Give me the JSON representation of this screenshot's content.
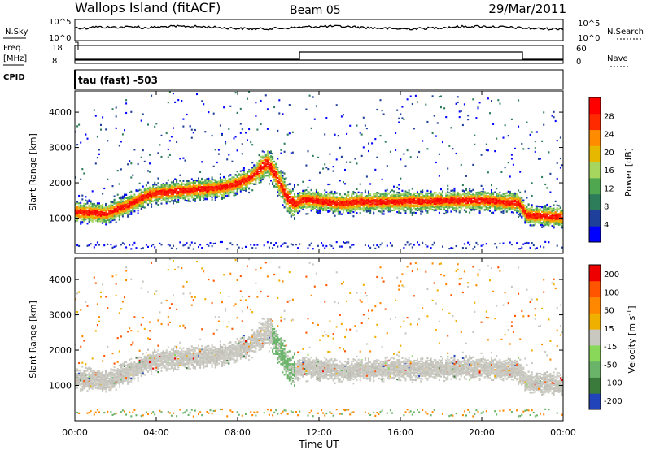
{
  "header": {
    "station": "Wallops Island (fitACF)",
    "beam": "Beam 05",
    "date": "29/Mar/2011"
  },
  "side_labels": {
    "nsky": "N.Sky",
    "nsearch": "N.Search",
    "freq": "Freq.",
    "freq_unit": "[MHz]",
    "nave": "Nave",
    "cpid": "CPID",
    "cpid_value": "tau (fast) -503"
  },
  "x_axis": {
    "label": "Time UT",
    "ticks": [
      "00:00",
      "04:00",
      "08:00",
      "12:00",
      "16:00",
      "20:00",
      "00:00"
    ],
    "range_hours": [
      0,
      24
    ]
  },
  "noise_panel": {
    "left_ticks": [
      "10^5",
      "10^0"
    ],
    "right_ticks": [
      "10^5",
      "10^0"
    ]
  },
  "freq_panel": {
    "left_ticks": [
      "18",
      "8"
    ],
    "right_ticks": [
      "60",
      "0"
    ]
  },
  "colors": {
    "power": [
      "#0000ff",
      "#1e3f9a",
      "#2d7d5a",
      "#4fa84f",
      "#a7d65f",
      "#e6b800",
      "#ff8c00",
      "#ff2a00",
      "#ff0000"
    ],
    "velocity": [
      "#2244bb",
      "#3a7a3a",
      "#6ab46a",
      "#8ad85a",
      "#c8c8c0",
      "#f0b000",
      "#ff8800",
      "#ff5500",
      "#ee0000"
    ]
  },
  "chart_data": [
    {
      "type": "heatmap",
      "xlabel": "Time UT",
      "ylabel": "Slant Range [km]",
      "ylim": [
        0,
        4600
      ],
      "y_ticks": [
        1000,
        2000,
        3000,
        4000
      ],
      "colorbar": {
        "label": "Power [dB]",
        "ticks": [
          4,
          8,
          12,
          16,
          20,
          24,
          28
        ],
        "range": [
          0,
          32
        ]
      },
      "band_center_km": [
        {
          "t": 0,
          "km": 1200
        },
        {
          "t": 1.5,
          "km": 1150
        },
        {
          "t": 2.6,
          "km": 1400
        },
        {
          "t": 3.6,
          "km": 1680
        },
        {
          "t": 5,
          "km": 1800
        },
        {
          "t": 6.5,
          "km": 1850
        },
        {
          "t": 7.5,
          "km": 1920
        },
        {
          "t": 8.6,
          "km": 2150
        },
        {
          "t": 9.4,
          "km": 2600
        },
        {
          "t": 9.8,
          "km": 2300
        },
        {
          "t": 10.4,
          "km": 1600
        },
        {
          "t": 10.8,
          "km": 1420
        },
        {
          "t": 11.2,
          "km": 1550
        },
        {
          "t": 12,
          "km": 1500
        },
        {
          "t": 13.2,
          "km": 1440
        },
        {
          "t": 14,
          "km": 1480
        },
        {
          "t": 17,
          "km": 1500
        },
        {
          "t": 20,
          "km": 1520
        },
        {
          "t": 21.8,
          "km": 1450
        },
        {
          "t": 22.2,
          "km": 1100
        },
        {
          "t": 24,
          "km": 1050
        }
      ]
    },
    {
      "type": "heatmap",
      "xlabel": "Time UT",
      "ylabel": "Slant Range [km]",
      "ylim": [
        0,
        4600
      ],
      "y_ticks": [
        1000,
        2000,
        3000,
        4000
      ],
      "colorbar": {
        "label": "Velocity [m s^-1]",
        "ticks": [
          200,
          100,
          50,
          15,
          -15,
          -50,
          -100,
          -200
        ],
        "range": [
          -250,
          250
        ]
      }
    }
  ]
}
